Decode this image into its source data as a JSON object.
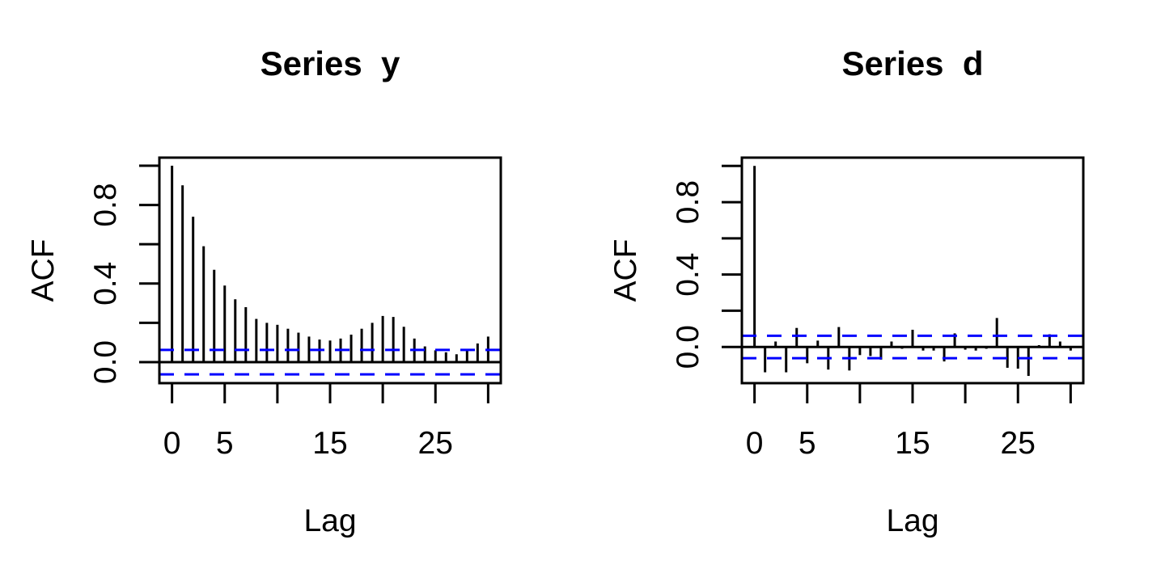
{
  "figure": {
    "background_color": "#FFFFFF",
    "bar_color": "#000000",
    "axis_color": "#000000",
    "conf_line_color": "#0000FF"
  },
  "chart_data": [
    {
      "type": "stem",
      "title": "Series  y",
      "xlabel": "Lag",
      "ylabel": "ACF",
      "x": [
        0,
        1,
        2,
        3,
        4,
        5,
        6,
        7,
        8,
        9,
        10,
        11,
        12,
        13,
        14,
        15,
        16,
        17,
        18,
        19,
        20,
        21,
        22,
        23,
        24,
        25,
        26,
        27,
        28,
        29,
        30
      ],
      "values": [
        1.0,
        0.9,
        0.74,
        0.59,
        0.47,
        0.39,
        0.32,
        0.28,
        0.22,
        0.2,
        0.19,
        0.17,
        0.15,
        0.13,
        0.115,
        0.11,
        0.12,
        0.14,
        0.17,
        0.2,
        0.235,
        0.23,
        0.18,
        0.12,
        0.08,
        0.06,
        0.05,
        0.04,
        0.065,
        0.095,
        0.13
      ],
      "conf_level": 0.062,
      "conf_line_style": "dashed",
      "grid": false,
      "legend": null,
      "xlim": [
        -1.2,
        31.2
      ],
      "ylim": [
        -0.107,
        1.041
      ],
      "x_ticks": [
        0,
        5,
        10,
        15,
        20,
        25,
        30
      ],
      "x_tick_labels": [
        "0",
        "5",
        "",
        "15",
        "",
        "25",
        ""
      ],
      "y_ticks": [
        0,
        0.2,
        0.4,
        0.6,
        0.8,
        1.0
      ],
      "y_tick_labels": [
        "0.0",
        "",
        "0.4",
        "",
        "0.8",
        ""
      ]
    },
    {
      "type": "stem",
      "title": "Series  d",
      "xlabel": "Lag",
      "ylabel": "ACF",
      "x": [
        0,
        1,
        2,
        3,
        4,
        5,
        6,
        7,
        8,
        9,
        10,
        11,
        12,
        13,
        14,
        15,
        16,
        17,
        18,
        19,
        20,
        21,
        22,
        23,
        24,
        25,
        26,
        27,
        28,
        29,
        30
      ],
      "values": [
        1.0,
        -0.14,
        0.03,
        -0.14,
        0.105,
        -0.09,
        0.035,
        -0.125,
        0.11,
        -0.13,
        -0.045,
        -0.05,
        -0.07,
        0.03,
        -0.01,
        0.095,
        -0.02,
        -0.02,
        -0.08,
        0.075,
        -0.015,
        -0.02,
        -0.01,
        0.16,
        -0.115,
        -0.12,
        -0.16,
        0.01,
        0.07,
        0.03,
        -0.02
      ],
      "conf_level": 0.062,
      "conf_line_style": "dashed",
      "grid": false,
      "legend": null,
      "xlim": [
        -1.2,
        31.2
      ],
      "ylim": [
        -0.2,
        1.046
      ],
      "x_ticks": [
        0,
        5,
        10,
        15,
        20,
        25,
        30
      ],
      "x_tick_labels": [
        "0",
        "5",
        "",
        "15",
        "",
        "25",
        ""
      ],
      "y_ticks": [
        0,
        0.2,
        0.4,
        0.6,
        0.8,
        1.0
      ],
      "y_tick_labels": [
        "0.0",
        "",
        "0.4",
        "",
        "0.8",
        ""
      ]
    }
  ]
}
